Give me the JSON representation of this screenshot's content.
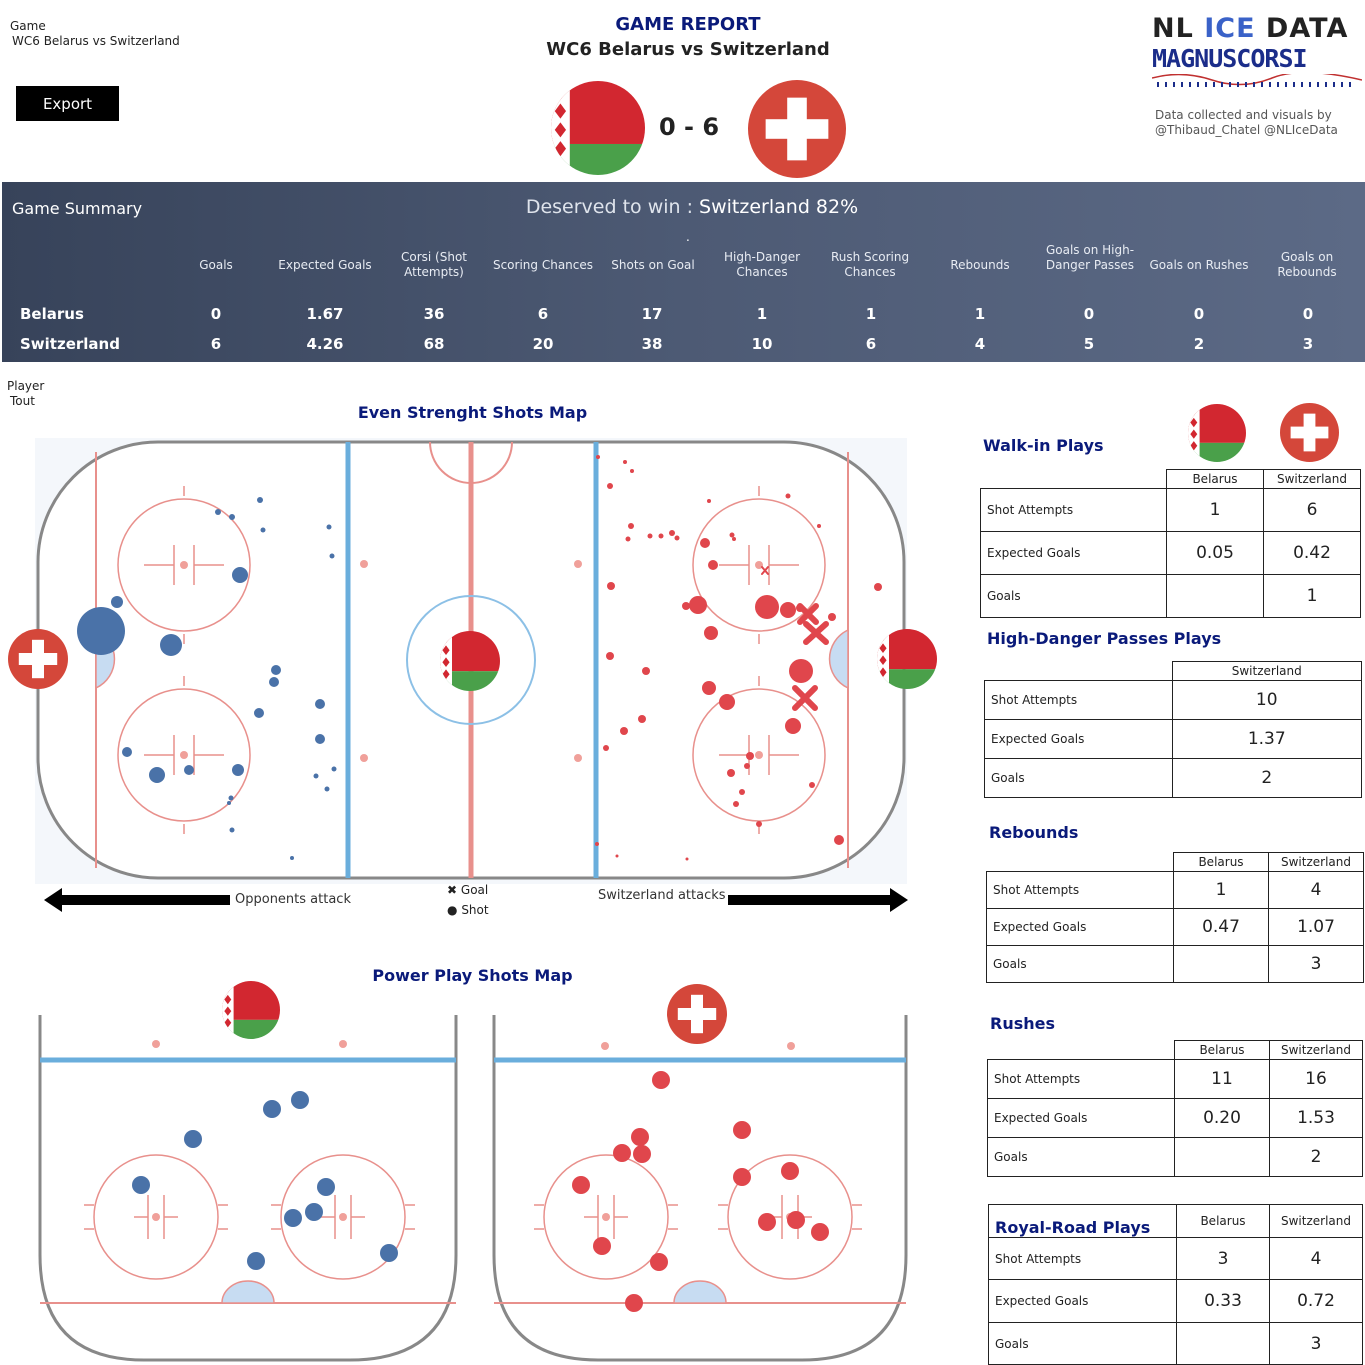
{
  "header": {
    "game_label": "Game",
    "game_value": "WC6 Belarus vs Switzerland",
    "export_label": "Export",
    "report_title": "GAME REPORT",
    "report_subtitle": "WC6 Belarus vs Switzerland",
    "score": "0 - 6",
    "logo_line1_a": "NL ",
    "logo_line1_b": "ICE",
    "logo_line1_c": " DATA",
    "logo_line2": "MAGNUSCORSI",
    "credit_line1": "Data collected and visuals by",
    "credit_line2": "@Thibaud_Chatel @NLIceData"
  },
  "colors": {
    "belarus": "#4a72a8",
    "switzerland": "#e0464c",
    "navy": "#0a1a7a",
    "flag_red": "#d22730",
    "flag_green": "#4aa04a",
    "swiss_red": "#d4473a"
  },
  "summary": {
    "label": "Game Summary",
    "deserved_label": "Deserved to win :",
    "deserved_value": "Switzerland 82%",
    "dot": ".",
    "columns": [
      "Goals",
      "Expected Goals",
      "Corsi (Shot Attempts)",
      "Scoring Chances",
      "Shots on Goal",
      "High-Danger Chances",
      "Rush Scoring Chances",
      "Rebounds",
      "Goals on High-Danger Passes",
      "Goals on Rushes",
      "Goals on Rebounds"
    ],
    "rows": [
      {
        "team": "Belarus",
        "values": [
          "0",
          "1.67",
          "36",
          "6",
          "17",
          "1",
          "1",
          "1",
          "0",
          "0",
          "0"
        ]
      },
      {
        "team": "Switzerland",
        "values": [
          "6",
          "4.26",
          "68",
          "20",
          "38",
          "10",
          "6",
          "4",
          "5",
          "2",
          "3"
        ]
      }
    ]
  },
  "player": {
    "label": "Player",
    "value": "Tout"
  },
  "even_strength": {
    "title": "Even Strenght Shots Map",
    "left_label": "Opponents attack",
    "right_label": "Switzerland attacks",
    "legend_goal": "Goal",
    "legend_shot": "Shot"
  },
  "power_play": {
    "title": "Power Play Shots Map"
  },
  "walkin": {
    "title": "Walk-in Plays",
    "cols": [
      "Belarus",
      "Switzerland"
    ],
    "rows": [
      {
        "label": "Shot Attempts",
        "values": [
          "1",
          "6"
        ]
      },
      {
        "label": "Expected Goals",
        "values": [
          "0.05",
          "0.42"
        ]
      },
      {
        "label": "Goals",
        "values": [
          "",
          "1"
        ]
      }
    ]
  },
  "hdpasses": {
    "title": "High-Danger Passes Plays",
    "cols": [
      "Switzerland"
    ],
    "rows": [
      {
        "label": "Shot Attempts",
        "values": [
          "10"
        ]
      },
      {
        "label": "Expected Goals",
        "values": [
          "1.37"
        ]
      },
      {
        "label": "Goals",
        "values": [
          "2"
        ]
      }
    ]
  },
  "rebounds": {
    "title": "Rebounds",
    "cols": [
      "Belarus",
      "Switzerland"
    ],
    "rows": [
      {
        "label": "Shot Attempts",
        "values": [
          "1",
          "4"
        ]
      },
      {
        "label": "Expected Goals",
        "values": [
          "0.47",
          "1.07"
        ]
      },
      {
        "label": "Goals",
        "values": [
          "",
          "3"
        ]
      }
    ]
  },
  "rushes": {
    "title": "Rushes",
    "cols": [
      "Belarus",
      "Switzerland"
    ],
    "rows": [
      {
        "label": "Shot Attempts",
        "values": [
          "11",
          "16"
        ]
      },
      {
        "label": "Expected Goals",
        "values": [
          "0.20",
          "1.53"
        ]
      },
      {
        "label": "Goals",
        "values": [
          "",
          "2"
        ]
      }
    ]
  },
  "royal": {
    "title": "Royal-Road Plays",
    "cols": [
      "Belarus",
      "Switzerland"
    ],
    "rows": [
      {
        "label": "Shot Attempts",
        "values": [
          "3",
          "4"
        ]
      },
      {
        "label": "Expected Goals",
        "values": [
          "0.33",
          "0.72"
        ]
      },
      {
        "label": "Goals",
        "values": [
          "",
          "3"
        ]
      }
    ]
  }
}
